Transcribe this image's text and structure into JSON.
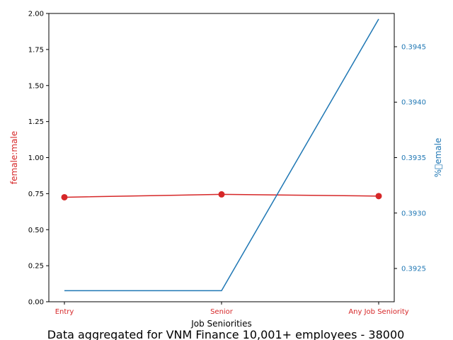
{
  "chart_data": {
    "type": "line",
    "categories": [
      "Entry",
      "Senior",
      "Any Job Seniority"
    ],
    "xlabel": "Job Seniorities",
    "caption": "Data aggregated for VNM Finance 10,001+ employees - 38000",
    "left_axis": {
      "label": "female:male",
      "color": "#d62728",
      "ylim": [
        0,
        2.0
      ],
      "ticks": [
        "0.00",
        "0.25",
        "0.50",
        "0.75",
        "1.00",
        "1.25",
        "1.50",
        "1.75",
        "2.00"
      ],
      "values": [
        0.725,
        0.745,
        0.733
      ],
      "markers": true
    },
    "right_axis": {
      "label": "%\u0000emale",
      "color": "#1f77b4",
      "ylim": [
        0.3922,
        0.3948
      ],
      "ticks": [
        "0.3925",
        "0.3930",
        "0.3935",
        "0.3940",
        "0.3945"
      ],
      "values": [
        0.3923,
        0.3923,
        0.39475
      ],
      "markers": false
    },
    "grid": false
  }
}
